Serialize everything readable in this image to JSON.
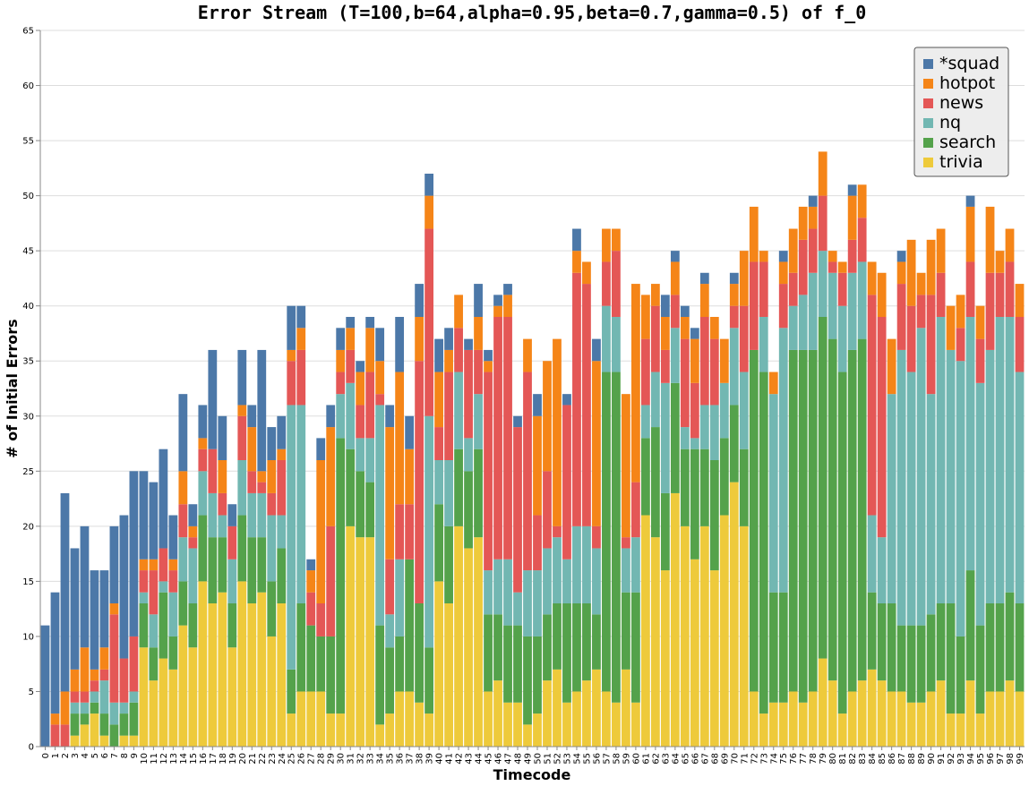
{
  "chart_data": {
    "type": "bar",
    "stacked": true,
    "title": "Error Stream (T=100,b=64,alpha=0.95,beta=0.7,gamma=0.5) of f_0",
    "xlabel": "Timecode",
    "ylabel": "# of Initial Errors",
    "ylim": [
      0,
      65
    ],
    "yticks": [
      0,
      5,
      10,
      15,
      20,
      25,
      30,
      35,
      40,
      45,
      50,
      55,
      60,
      65
    ],
    "grid": true,
    "legend_position": "top-right",
    "categories": [
      "0",
      "1",
      "2",
      "3",
      "4",
      "5",
      "6",
      "7",
      "8",
      "9",
      "10",
      "11",
      "12",
      "13",
      "14",
      "15",
      "16",
      "17",
      "18",
      "19",
      "20",
      "21",
      "22",
      "23",
      "24",
      "25",
      "26",
      "27",
      "28",
      "29",
      "30",
      "31",
      "32",
      "33",
      "34",
      "35",
      "36",
      "37",
      "38",
      "39",
      "40",
      "41",
      "42",
      "43",
      "44",
      "45",
      "46",
      "47",
      "48",
      "49",
      "50",
      "51",
      "52",
      "53",
      "54",
      "55",
      "56",
      "57",
      "58",
      "59",
      "60",
      "61",
      "62",
      "63",
      "64",
      "65",
      "66",
      "67",
      "68",
      "69",
      "70",
      "71",
      "72",
      "73",
      "74",
      "75",
      "76",
      "77",
      "78",
      "79",
      "80",
      "81",
      "82",
      "83",
      "84",
      "85",
      "86",
      "87",
      "88",
      "89",
      "90",
      "91",
      "92",
      "93",
      "94",
      "95",
      "96",
      "97",
      "98",
      "99"
    ],
    "series": [
      {
        "name": "trivia",
        "color": "#eeca3b",
        "values": [
          0,
          0,
          0,
          1,
          2,
          3,
          1,
          0,
          1,
          1,
          9,
          6,
          8,
          7,
          11,
          9,
          15,
          13,
          14,
          9,
          15,
          13,
          14,
          10,
          13,
          3,
          5,
          5,
          5,
          3,
          3,
          20,
          19,
          19,
          2,
          3,
          5,
          5,
          4,
          3,
          15,
          13,
          20,
          18,
          19,
          5,
          6,
          4,
          4,
          2,
          3,
          6,
          7,
          4,
          5,
          6,
          7,
          5,
          4,
          7,
          4,
          21,
          19,
          16,
          23,
          20,
          17,
          20,
          16,
          21,
          24,
          20,
          5,
          3,
          4,
          4,
          5,
          4,
          5,
          8,
          6,
          3,
          5,
          6,
          7,
          6,
          5,
          5,
          4,
          4,
          5,
          6,
          3,
          3,
          6,
          3,
          5,
          5,
          6,
          5
        ]
      },
      {
        "name": "search",
        "color": "#54a24b",
        "values": [
          0,
          0,
          0,
          2,
          1,
          1,
          2,
          2,
          2,
          3,
          4,
          3,
          6,
          3,
          4,
          4,
          6,
          6,
          5,
          4,
          6,
          6,
          5,
          5,
          5,
          4,
          8,
          6,
          5,
          7,
          25,
          7,
          6,
          5,
          9,
          6,
          5,
          12,
          9,
          6,
          7,
          7,
          7,
          7,
          8,
          7,
          6,
          7,
          7,
          8,
          7,
          6,
          6,
          9,
          8,
          7,
          5,
          29,
          30,
          7,
          10,
          7,
          10,
          7,
          10,
          7,
          10,
          7,
          10,
          7,
          7,
          7,
          31,
          31,
          10,
          10,
          31,
          32,
          31,
          31,
          31,
          31,
          31,
          31,
          7,
          7,
          8,
          6,
          7,
          7,
          7,
          7,
          10,
          7,
          10,
          8,
          8,
          8,
          8,
          8
        ]
      },
      {
        "name": "nq",
        "color": "#72b7b2",
        "values": [
          0,
          0,
          0,
          1,
          1,
          1,
          3,
          2,
          1,
          1,
          1,
          3,
          1,
          4,
          4,
          5,
          4,
          4,
          2,
          4,
          5,
          4,
          4,
          6,
          3,
          24,
          18,
          0,
          0,
          0,
          4,
          6,
          3,
          4,
          20,
          3,
          7,
          0,
          0,
          21,
          4,
          6,
          7,
          3,
          5,
          4,
          5,
          6,
          3,
          6,
          6,
          6,
          6,
          4,
          7,
          7,
          6,
          6,
          5,
          4,
          5,
          3,
          5,
          10,
          5,
          2,
          1,
          4,
          5,
          5,
          7,
          7,
          0,
          5,
          18,
          24,
          4,
          5,
          7,
          6,
          6,
          6,
          7,
          7,
          7,
          6,
          19,
          25,
          23,
          27,
          20,
          26,
          23,
          25,
          23,
          22,
          23,
          26,
          25,
          21
        ]
      },
      {
        "name": "news",
        "color": "#e45756",
        "values": [
          0,
          2,
          2,
          1,
          1,
          1,
          1,
          8,
          4,
          5,
          2,
          4,
          3,
          2,
          3,
          1,
          2,
          4,
          2,
          3,
          4,
          2,
          1,
          2,
          5,
          4,
          5,
          3,
          3,
          10,
          2,
          3,
          3,
          6,
          1,
          5,
          5,
          5,
          22,
          17,
          3,
          8,
          4,
          8,
          4,
          18,
          22,
          22,
          15,
          18,
          5,
          7,
          1,
          14,
          23,
          22,
          2,
          4,
          6,
          1,
          5,
          6,
          6,
          3,
          3,
          8,
          5,
          8,
          6,
          0,
          2,
          6,
          8,
          5,
          0,
          4,
          3,
          5,
          4,
          5,
          1,
          3,
          3,
          4,
          20,
          20,
          0,
          6,
          6,
          3,
          9,
          4,
          0,
          3,
          5,
          4,
          7,
          4,
          5,
          5
        ]
      },
      {
        "name": "hotpot",
        "color": "#f58518",
        "values": [
          0,
          1,
          3,
          2,
          4,
          1,
          2,
          1,
          0,
          0,
          1,
          1,
          0,
          1,
          3,
          1,
          1,
          0,
          3,
          0,
          1,
          4,
          1,
          3,
          1,
          1,
          2,
          2,
          13,
          9,
          2,
          2,
          3,
          4,
          3,
          12,
          12,
          5,
          4,
          3,
          5,
          2,
          3,
          0,
          3,
          1,
          1,
          2,
          0,
          3,
          9,
          10,
          17,
          0,
          2,
          2,
          15,
          3,
          2,
          13,
          18,
          4,
          2,
          3,
          3,
          2,
          4,
          3,
          2,
          4,
          2,
          5,
          5,
          1,
          2,
          2,
          4,
          3,
          2,
          4,
          1,
          1,
          4,
          3,
          3,
          4,
          5,
          2,
          6,
          2,
          5,
          4,
          4,
          3,
          5,
          3,
          6,
          2,
          3,
          3
        ]
      },
      {
        "name": "*squad",
        "color": "#4c78a8",
        "values": [
          11,
          11,
          18,
          11,
          11,
          9,
          7,
          7,
          13,
          15,
          8,
          7,
          9,
          4,
          7,
          2,
          3,
          9,
          4,
          2,
          5,
          2,
          11,
          3,
          3,
          4,
          2,
          1,
          2,
          2,
          2,
          1,
          1,
          1,
          3,
          2,
          5,
          3,
          3,
          2,
          3,
          2,
          0,
          1,
          3,
          1,
          1,
          1,
          1,
          0,
          2,
          0,
          0,
          1,
          2,
          0,
          2,
          0,
          0,
          0,
          0,
          0,
          0,
          2,
          1,
          1,
          1,
          1,
          0,
          0,
          1,
          0,
          0,
          0,
          0,
          1,
          0,
          0,
          1,
          0,
          0,
          0,
          1,
          0,
          0,
          0,
          0,
          1,
          0,
          0,
          0,
          0,
          0,
          0,
          1,
          0,
          0,
          0,
          0,
          0
        ]
      }
    ]
  }
}
